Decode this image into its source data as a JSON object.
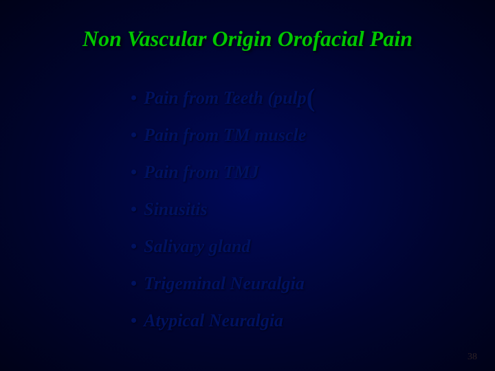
{
  "title": "Non Vascular Origin Orofacial Pain",
  "bullets": {
    "b0_pre": "Pain from Teeth (pulp",
    "b0_paren": "(",
    "b1": "Pain from TM muscle",
    "b2": "Pain from TMJ",
    "b3": "Sinusitis",
    "b4": "Salivary gland",
    "b5": "Trigeminal Neuralgia",
    "b6": "Atypical Neuralgia"
  },
  "pageNumber": "38",
  "style": {
    "title_color": "#00c800",
    "text_color": "#001260",
    "background_inner": "#000958",
    "background_outer": "#000218",
    "title_fontsize": 32,
    "item_fontsize": 26,
    "font_family": "Times New Roman",
    "font_style": "italic",
    "font_weight": "bold"
  }
}
